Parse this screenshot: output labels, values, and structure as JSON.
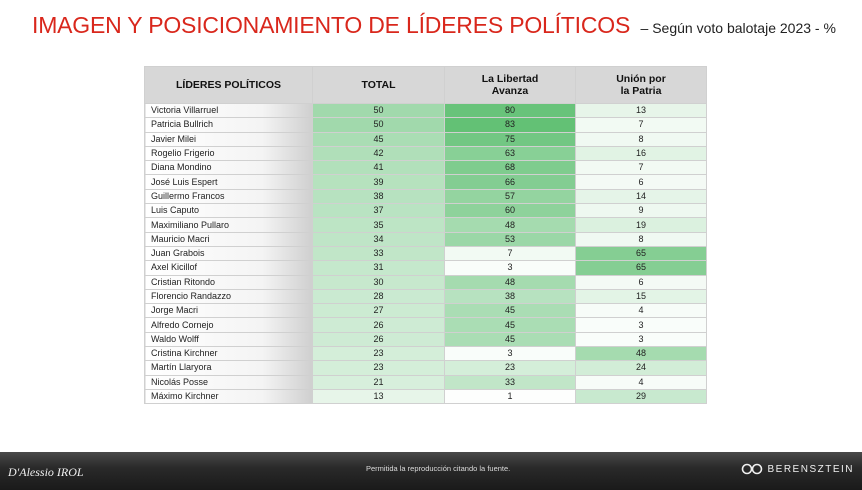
{
  "title": {
    "main": "IMAGEN Y POSICIONAMIENTO DE LÍDERES POLÍTICOS",
    "sub": "– Según voto balotaje 2023 - %"
  },
  "table": {
    "headers": [
      "LÍDERES POLÍTICOS",
      "TOTAL",
      "La Libertad Avanza",
      "Unión por la Patria"
    ],
    "rows": [
      {
        "name": "Victoria Villarruel",
        "total": 50,
        "lla": 80,
        "uxp": 13
      },
      {
        "name": "Patricia Bullrich",
        "total": 50,
        "lla": 83,
        "uxp": 7
      },
      {
        "name": "Javier Milei",
        "total": 45,
        "lla": 75,
        "uxp": 8
      },
      {
        "name": "Rogelio Frigerio",
        "total": 42,
        "lla": 63,
        "uxp": 16
      },
      {
        "name": "Diana Mondino",
        "total": 41,
        "lla": 68,
        "uxp": 7
      },
      {
        "name": "José Luis Espert",
        "total": 39,
        "lla": 66,
        "uxp": 6
      },
      {
        "name": "Guillermo Francos",
        "total": 38,
        "lla": 57,
        "uxp": 14
      },
      {
        "name": "Luis Caputo",
        "total": 37,
        "lla": 60,
        "uxp": 9
      },
      {
        "name": "Maximiliano Pullaro",
        "total": 35,
        "lla": 48,
        "uxp": 19
      },
      {
        "name": "Mauricio Macri",
        "total": 34,
        "lla": 53,
        "uxp": 8
      },
      {
        "name": "Juan Grabois",
        "total": 33,
        "lla": 7,
        "uxp": 65
      },
      {
        "name": "Axel Kicillof",
        "total": 31,
        "lla": 3,
        "uxp": 65
      },
      {
        "name": "Cristian Ritondo",
        "total": 30,
        "lla": 48,
        "uxp": 6
      },
      {
        "name": "Florencio Randazzo",
        "total": 28,
        "lla": 38,
        "uxp": 15
      },
      {
        "name": "Jorge Macri",
        "total": 27,
        "lla": 45,
        "uxp": 4
      },
      {
        "name": "Alfredo Cornejo",
        "total": 26,
        "lla": 45,
        "uxp": 3
      },
      {
        "name": "Waldo Wolff",
        "total": 26,
        "lla": 45,
        "uxp": 3
      },
      {
        "name": "Cristina Kirchner",
        "total": 23,
        "lla": 3,
        "uxp": 48
      },
      {
        "name": "Martín Llaryora",
        "total": 23,
        "lla": 23,
        "uxp": 24
      },
      {
        "name": "Nicolás Posse",
        "total": 21,
        "lla": 33,
        "uxp": 4
      },
      {
        "name": "Máximo Kirchner",
        "total": 13,
        "lla": 1,
        "uxp": 29
      }
    ]
  },
  "colors": {
    "title_red": "#d9271c",
    "heat_low": "#ffffff",
    "heat_high": "#5fbf72",
    "header_bg": "#d7d7d7"
  },
  "footer": {
    "left_logo": "D'Alessio IROL",
    "note": "Permitida la reproducción citando la fuente.",
    "right_logo": "BERENSZTEIN"
  }
}
